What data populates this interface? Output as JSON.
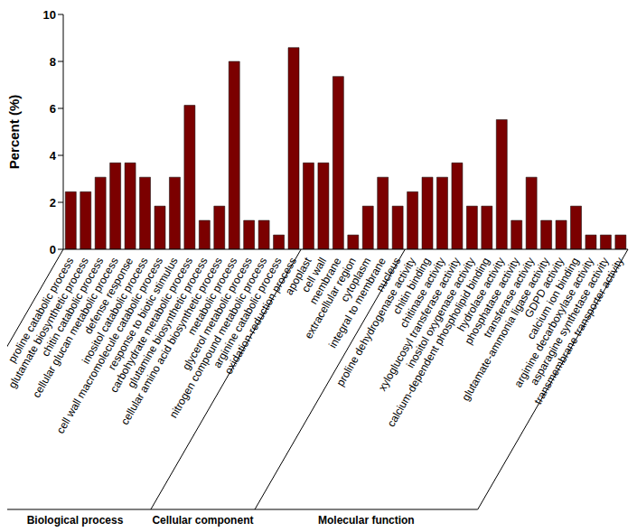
{
  "chart_data": {
    "type": "bar",
    "y_label": "Percent (%)",
    "categories": [
      "proline catabolic process",
      "glutamate biosynthetic process",
      "chitin catabolic process",
      "cellular glucan metabolic process",
      "defense response",
      "inositol catabolic process",
      "cell wall macromolecule catabolic process",
      "response to biotic stimulus",
      "carbohydrate metabolic process",
      "glutamine biosynthetic process",
      "cellular amino acid biosynthetic process",
      "metabolic process",
      "glycerol metabolic process",
      "nitrogen compound metabolic process",
      "arginine catabolic process",
      "oxidation-reduction process",
      "apoplast",
      "cell wall",
      "membrane",
      "extracellular region",
      "cytoplasm",
      "integral to membrane",
      "nucleus",
      "proline dehydrogenase activity",
      "chitin binding",
      "chitinase activity",
      "xyloglucosyl transferase activity",
      "inositol oxygenase activity",
      "calcium-dependent phospholipid binding",
      "hydrolase activity",
      "phosphatase activity",
      "transferase activity",
      "glutamate-ammonia ligase activity",
      "GDPD activity",
      "calcium ion binding",
      "arginine decarboxylase activity",
      "asparagine synthetase activity",
      "transmembrane transporter activity"
    ],
    "values": [
      2.45,
      2.45,
      3.07,
      3.68,
      3.68,
      3.07,
      1.84,
      3.07,
      6.13,
      1.23,
      1.84,
      8.0,
      1.23,
      1.23,
      0.61,
      8.59,
      3.68,
      3.68,
      7.36,
      0.61,
      1.84,
      3.07,
      1.84,
      2.45,
      3.07,
      3.07,
      3.68,
      1.84,
      1.84,
      5.52,
      1.23,
      3.07,
      1.23,
      1.23,
      1.84,
      0.61,
      0.61,
      0.61
    ],
    "category_groups": [
      "Biological process",
      "Biological process",
      "Biological process",
      "Biological process",
      "Biological process",
      "Biological process",
      "Biological process",
      "Biological process",
      "Biological process",
      "Biological process",
      "Biological process",
      "Biological process",
      "Biological process",
      "Biological process",
      "Biological process",
      "Biological process",
      "Cellular component",
      "Cellular component",
      "Cellular component",
      "Cellular component",
      "Cellular component",
      "Cellular component",
      "Cellular component",
      "Molecular function",
      "Molecular function",
      "Molecular function",
      "Molecular function",
      "Molecular function",
      "Molecular function",
      "Molecular function",
      "Molecular function",
      "Molecular function",
      "Molecular function",
      "Molecular function",
      "Molecular function",
      "Molecular function",
      "Molecular function",
      "Molecular function"
    ],
    "color": "#7b0000",
    "ylim": [
      0,
      10
    ],
    "yticks": [
      0,
      2,
      4,
      6,
      8,
      10
    ]
  }
}
